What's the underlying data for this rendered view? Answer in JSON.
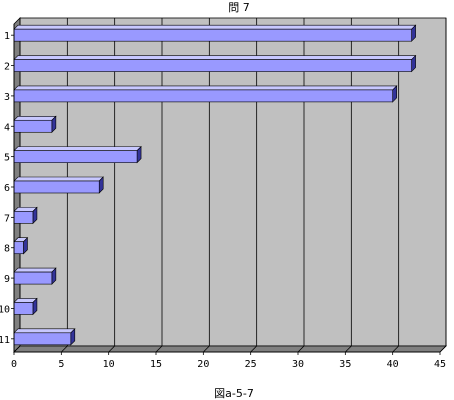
{
  "chart_data": {
    "type": "bar",
    "orientation": "horizontal",
    "title": "問 7",
    "caption": "図a-5-7",
    "categories": [
      "1",
      "2",
      "3",
      "4",
      "5",
      "6",
      "7",
      "8",
      "9",
      "10",
      "11"
    ],
    "values": [
      42,
      42,
      40,
      4,
      13,
      9,
      2,
      1,
      4,
      2,
      6
    ],
    "xlim": [
      0,
      45
    ],
    "x_ticks": [
      "0",
      "5",
      "10",
      "15",
      "20",
      "25",
      "30",
      "35",
      "40",
      "45"
    ],
    "grid": "vertical",
    "style": "3d",
    "colors": {
      "bar_face": "#9999ff",
      "bar_top": "#c8c8ff",
      "bar_side": "#333399",
      "plot_back": "#c0c0c0",
      "plot_floor": "#808080"
    }
  }
}
